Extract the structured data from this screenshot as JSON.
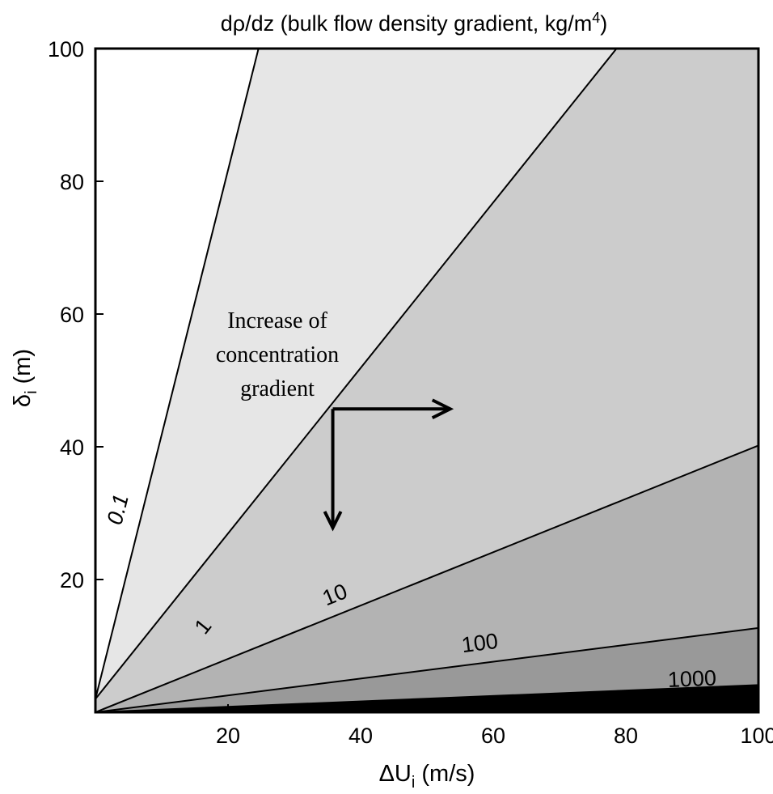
{
  "chart_data": {
    "type": "contour",
    "title_main": "dρ/dz (bulk flow density gradient, kg/m",
    "title_sup": "4",
    "title_end": ")",
    "xlabel_main": "ΔU",
    "xlabel_sub": "i",
    "xlabel_end": " (m/s)",
    "ylabel_main": "δ",
    "ylabel_sub": "i",
    "ylabel_end": " (m)",
    "xlim": [
      0,
      100
    ],
    "ylim": [
      0,
      100
    ],
    "x_ticks": [
      "20",
      "40",
      "60",
      "80",
      "100"
    ],
    "y_ticks": [
      "20",
      "40",
      "60",
      "80",
      "100"
    ],
    "x_tick_values": [
      20,
      40,
      60,
      80,
      100
    ],
    "y_tick_values": [
      20,
      40,
      60,
      80,
      100
    ],
    "contours": [
      {
        "level": "0.1",
        "points": [
          [
            0,
            2
          ],
          [
            24.6,
            100
          ]
        ]
      },
      {
        "level": "1",
        "points": [
          [
            0,
            2
          ],
          [
            78.6,
            100
          ]
        ]
      },
      {
        "level": "10",
        "points": [
          [
            0,
            0
          ],
          [
            100,
            40.2
          ]
        ]
      },
      {
        "level": "100",
        "points": [
          [
            0,
            0
          ],
          [
            100,
            12.7
          ]
        ]
      },
      {
        "level": "1000",
        "points": [
          [
            0,
            0
          ],
          [
            100,
            4.1
          ]
        ]
      }
    ],
    "contour_label_positions": [
      [
        3.6,
        30.5
      ],
      [
        16.4,
        12.8
      ],
      [
        36.2,
        17.5
      ],
      [
        58,
        10.2
      ],
      [
        90,
        4.8
      ]
    ],
    "region_colors": [
      "#ffffff",
      "#e6e6e6",
      "#cccccc",
      "#b3b3b3",
      "#999999",
      "#000000"
    ],
    "annotation": {
      "lines": [
        "Increase of",
        "concentration",
        "gradient"
      ],
      "origin": [
        35.8,
        45.7
      ],
      "arrow_right_to": [
        53.5,
        45.7
      ],
      "arrow_down_to": [
        35.8,
        27.8
      ]
    }
  }
}
